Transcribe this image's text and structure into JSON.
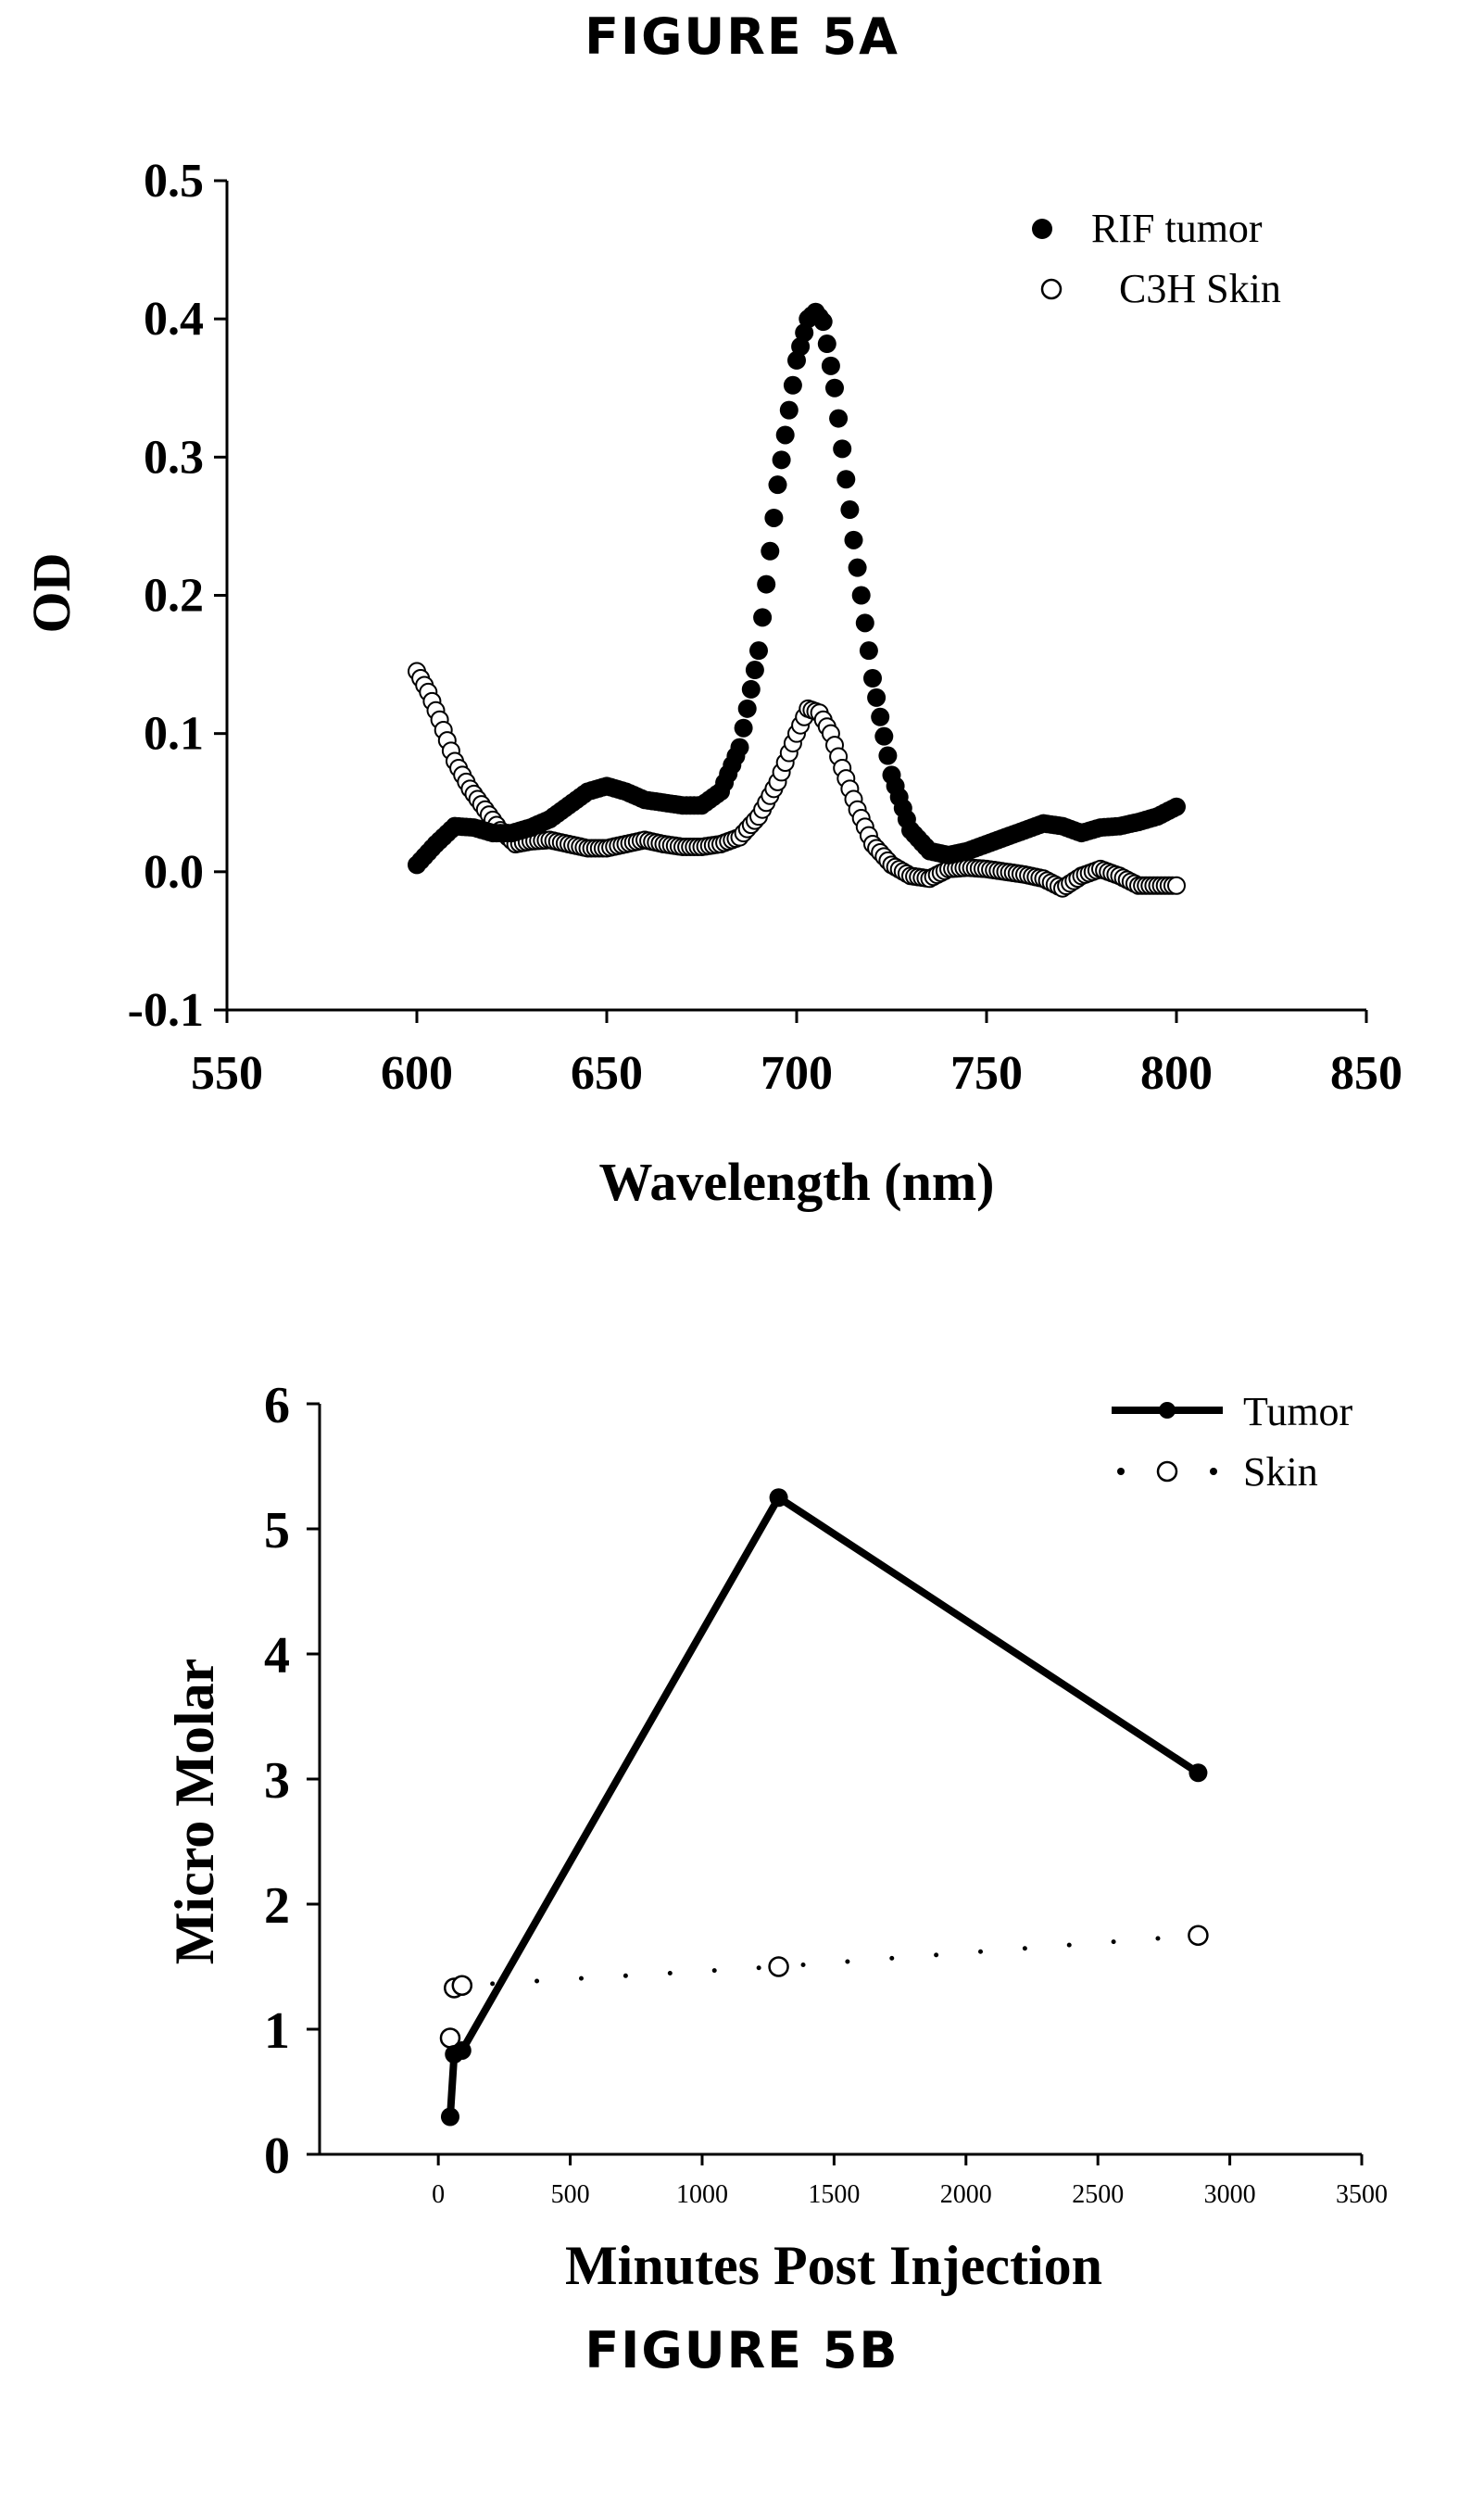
{
  "figures": {
    "a_title": "FIGURE 5A",
    "b_title": "FIGURE 5B"
  },
  "chart_data": [
    {
      "type": "scatter",
      "title": "FIGURE 5A",
      "xlabel": "Wavelength (nm)",
      "ylabel": "OD",
      "xlim": [
        550,
        850
      ],
      "ylim": [
        -0.1,
        0.5
      ],
      "xticks": [
        550,
        600,
        650,
        700,
        750,
        800,
        850
      ],
      "yticks": [
        -0.1,
        0.0,
        0.1,
        0.2,
        0.3,
        0.4,
        0.5
      ],
      "ytick_labels": [
        "-0.1",
        "0.0",
        "0.1",
        "0.2",
        "0.3",
        "0.4",
        "0.5"
      ],
      "legend_position": "top-right",
      "series": [
        {
          "name": "RIF tumor",
          "marker": "filled-circle",
          "x": [
            600,
            605,
            610,
            615,
            620,
            625,
            630,
            635,
            640,
            645,
            650,
            655,
            660,
            665,
            670,
            675,
            680,
            685,
            690,
            695,
            700,
            703,
            705,
            707,
            710,
            715,
            720,
            725,
            730,
            735,
            740,
            745,
            750,
            755,
            760,
            765,
            770,
            775,
            780,
            785,
            790,
            795,
            800
          ],
          "y": [
            0.005,
            0.02,
            0.033,
            0.032,
            0.028,
            0.028,
            0.032,
            0.038,
            0.048,
            0.058,
            0.062,
            0.058,
            0.052,
            0.05,
            0.048,
            0.048,
            0.058,
            0.09,
            0.16,
            0.28,
            0.37,
            0.4,
            0.405,
            0.398,
            0.35,
            0.24,
            0.14,
            0.07,
            0.03,
            0.015,
            0.012,
            0.015,
            0.02,
            0.025,
            0.03,
            0.035,
            0.033,
            0.028,
            0.032,
            0.033,
            0.036,
            0.04,
            0.047
          ]
        },
        {
          "name": "C3H Skin",
          "marker": "open-circle",
          "x": [
            600,
            603,
            606,
            610,
            614,
            618,
            622,
            626,
            630,
            635,
            640,
            645,
            650,
            655,
            660,
            665,
            670,
            675,
            680,
            685,
            690,
            695,
            700,
            703,
            706,
            709,
            712,
            716,
            720,
            725,
            730,
            735,
            740,
            745,
            750,
            755,
            760,
            765,
            770,
            775,
            780,
            785,
            790,
            795,
            800
          ],
          "y": [
            0.145,
            0.13,
            0.11,
            0.08,
            0.06,
            0.045,
            0.03,
            0.02,
            0.022,
            0.023,
            0.02,
            0.017,
            0.017,
            0.02,
            0.023,
            0.02,
            0.018,
            0.018,
            0.02,
            0.025,
            0.04,
            0.065,
            0.1,
            0.118,
            0.115,
            0.1,
            0.075,
            0.045,
            0.02,
            0.005,
            -0.003,
            -0.005,
            0.002,
            0.003,
            0.002,
            0.0,
            -0.002,
            -0.005,
            -0.012,
            -0.003,
            0.002,
            -0.003,
            -0.01,
            -0.01,
            -0.01
          ]
        }
      ]
    },
    {
      "type": "line",
      "title": "FIGURE 5B",
      "xlabel": "Minutes Post Injection",
      "ylabel": "Micro Molar",
      "xlim": [
        -450,
        3500
      ],
      "ylim": [
        0,
        6
      ],
      "xticks": [
        0,
        500,
        1000,
        1500,
        2000,
        2500,
        3000,
        3500
      ],
      "yticks": [
        0,
        1,
        2,
        3,
        4,
        5,
        6
      ],
      "legend_position": "top-right",
      "series": [
        {
          "name": "Tumor",
          "style": "solid-line-filled-marker",
          "x": [
            45,
            60,
            90,
            1290,
            2880
          ],
          "y": [
            0.3,
            0.8,
            0.83,
            5.25,
            3.05
          ]
        },
        {
          "name": "Skin",
          "style": "dotted-line-open-marker",
          "x": [
            45,
            60,
            90,
            1290,
            2880
          ],
          "y": [
            0.93,
            1.33,
            1.35,
            1.5,
            1.75
          ]
        }
      ]
    }
  ]
}
